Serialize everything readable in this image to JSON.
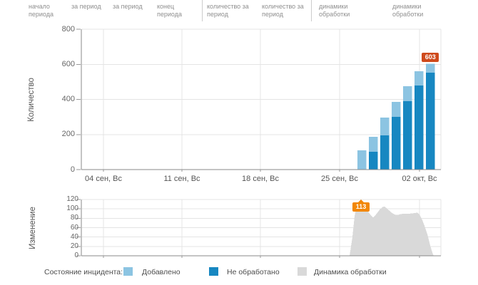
{
  "header": {
    "columns": [
      {
        "label": "начало периода"
      },
      {
        "label": "за период"
      },
      {
        "label": "за период"
      },
      {
        "label": "конец периода"
      },
      {
        "label": "количество за период"
      },
      {
        "label": "количество за период"
      },
      {
        "label": "динамики обработки"
      },
      {
        "label": "динамики обработки"
      }
    ]
  },
  "chart_data": [
    {
      "type": "bar",
      "title": "",
      "ylabel": "Количество",
      "xlabel": "",
      "ylim": [
        0,
        800
      ],
      "yticks": [
        0,
        200,
        400,
        600,
        800
      ],
      "xticklabels": [
        "04 сен, Вс",
        "11 сен, Вс",
        "18 сен, Вс",
        "25 сен, Вс",
        "02 окт, Вс"
      ],
      "grid": true,
      "series": [
        {
          "name": "Добавлено",
          "color": "#8cc4e2",
          "values": [
            110,
            187,
            296,
            385,
            475,
            560,
            603
          ]
        },
        {
          "name": "Не обработано",
          "color": "#1787c1",
          "values": [
            0,
            101,
            195,
            300,
            390,
            480,
            552
          ]
        }
      ],
      "annotation": {
        "text": "603",
        "color": "#cf4a1c"
      }
    },
    {
      "type": "area",
      "title": "",
      "ylabel": "Изменение",
      "xlabel": "",
      "ylim": [
        0,
        120
      ],
      "yticks": [
        0,
        20,
        40,
        60,
        80,
        100,
        120
      ],
      "grid": true,
      "series": [
        {
          "name": "Динамика обработки",
          "color": "#d9d9d9",
          "points": [
            [
              490,
              0
            ],
            [
              494,
              40
            ],
            [
              497,
              85
            ],
            [
              500,
              105
            ],
            [
              503,
              111
            ],
            [
              505,
              113
            ],
            [
              508,
              110
            ],
            [
              512,
              102
            ],
            [
              516,
              94
            ],
            [
              520,
              86
            ],
            [
              523,
              82
            ],
            [
              527,
              88
            ],
            [
              532,
              98
            ],
            [
              536,
              104
            ],
            [
              539,
              105
            ],
            [
              543,
              100
            ],
            [
              548,
              93
            ],
            [
              553,
              88
            ],
            [
              557,
              87
            ],
            [
              562,
              89
            ],
            [
              568,
              90
            ],
            [
              575,
              90
            ],
            [
              581,
              91
            ],
            [
              585,
              92
            ],
            [
              588,
              88
            ],
            [
              592,
              76
            ],
            [
              596,
              60
            ],
            [
              599,
              46
            ],
            [
              601,
              34
            ],
            [
              603,
              22
            ],
            [
              605,
              12
            ],
            [
              607,
              3
            ],
            [
              608,
              0
            ]
          ]
        }
      ],
      "annotation": {
        "text": "113",
        "color": "#f28705"
      }
    }
  ],
  "legend": {
    "title": "Состояние инцидента:",
    "items": [
      {
        "label": "Добавлено",
        "color": "#8cc4e2"
      },
      {
        "label": "Не обработано",
        "color": "#1787c1"
      },
      {
        "label": "Динамика обработки",
        "color": "#d9d9d9"
      }
    ]
  },
  "colors": {
    "gridline": "#e4e4e4",
    "axis": "#888888",
    "tick_text": "#666666",
    "header_text": "#8f8f8f"
  }
}
